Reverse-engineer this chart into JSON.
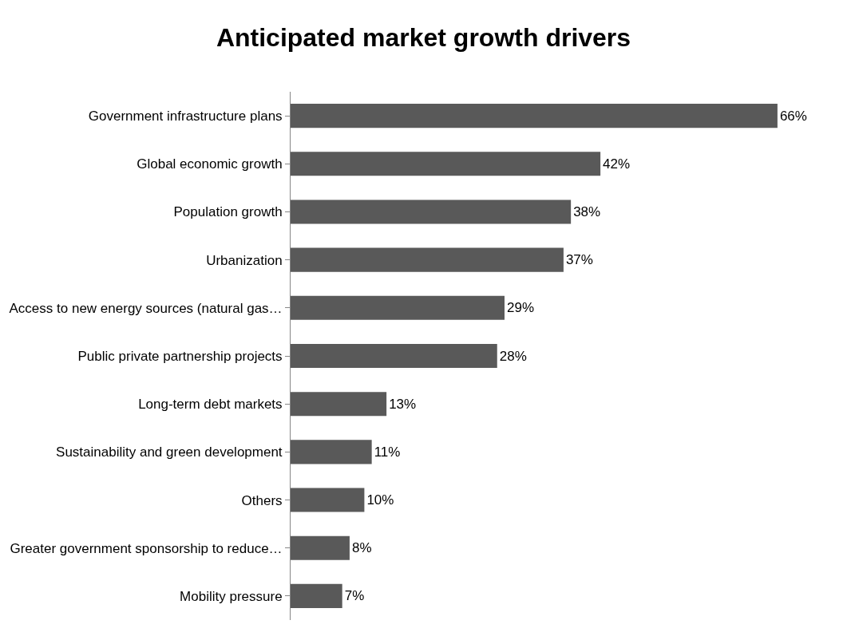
{
  "chart_data": {
    "type": "bar",
    "orientation": "horizontal",
    "title": "Anticipated market growth drivers",
    "categories": [
      "Government infrastructure plans",
      "Global economic growth",
      "Population growth",
      "Urbanization",
      "Access to new energy sources (natural gas…",
      "Public private partnership projects",
      "Long-term debt markets",
      "Sustainability and green development",
      "Others",
      "Greater government sponsorship to reduce…",
      "Mobility pressure"
    ],
    "values": [
      66,
      42,
      38,
      37,
      29,
      28,
      13,
      11,
      10,
      8,
      7
    ],
    "value_labels": [
      "66%",
      "42%",
      "38%",
      "37%",
      "29%",
      "28%",
      "13%",
      "11%",
      "10%",
      "8%",
      "7%"
    ],
    "color": "#595959",
    "tick_labels": "y",
    "legend": false
  }
}
